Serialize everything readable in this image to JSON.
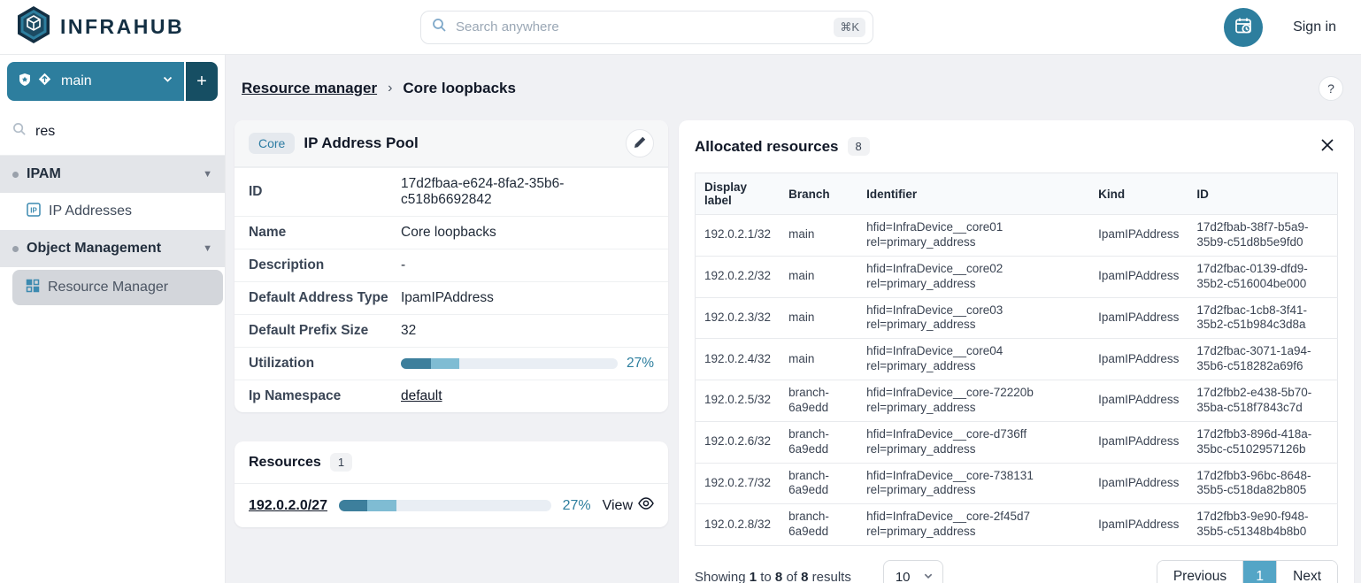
{
  "colors": {
    "brand_navy": "#132f43",
    "accent_teal": "#2d7e9e",
    "branch_add_bg": "#164e63",
    "active_page_bg": "#54a5c6",
    "progress_dark": "#3d7f9c",
    "progress_light": "#7fbcd3",
    "progress_track": "#e9eef4"
  },
  "icons": [
    "hexagon-logo-icon",
    "search-icon",
    "shield-icon",
    "branch-icon",
    "chevron-down-icon",
    "plus-icon",
    "calendar-clock-icon",
    "help-icon",
    "pencil-icon",
    "eye-icon",
    "close-icon",
    "ip-square-icon",
    "grid-icon",
    "bullet-dot"
  ],
  "header": {
    "brand": "INFRAHUB",
    "search": {
      "placeholder": "Search anywhere",
      "shortcut": "⌘K"
    },
    "sign_in": "Sign in"
  },
  "sidebar": {
    "branch": {
      "name": "main",
      "add_label": "+"
    },
    "filter_value": "res",
    "sections": [
      {
        "label": "IPAM"
      },
      {
        "label": "Object Management"
      }
    ],
    "items": [
      {
        "label": "IP Addresses"
      },
      {
        "label": "Resource Manager"
      }
    ]
  },
  "breadcrumb": {
    "parent": "Resource manager",
    "separator": "›",
    "current": "Core loopbacks",
    "help": "?"
  },
  "pool_card": {
    "badge": "Core",
    "title": "IP Address Pool",
    "labels": {
      "id": "ID",
      "name": "Name",
      "description": "Description",
      "default_address_type": "Default Address Type",
      "default_prefix_size": "Default Prefix Size",
      "utilization": "Utilization",
      "ip_namespace": "Ip Namespace"
    },
    "values": {
      "id": "17d2fbaa-e624-8fa2-35b6-c518b6692842",
      "name": "Core loopbacks",
      "description": "-",
      "default_address_type": "IpamIPAddress",
      "default_prefix_size": "32",
      "ip_namespace": "default"
    },
    "utilization": {
      "percent_label": "27%",
      "dark_pct": 14,
      "light_pct": 13
    }
  },
  "resources_card": {
    "title": "Resources",
    "count": "1",
    "item": {
      "prefix": "192.0.2.0/27",
      "percent_label": "27%",
      "dark_pct": 13.5,
      "light_pct": 13.5,
      "view_label": "View"
    }
  },
  "allocated": {
    "title": "Allocated resources",
    "count": "8",
    "columns": [
      "Display label",
      "Branch",
      "Identifier",
      "Kind",
      "ID"
    ],
    "rows": [
      {
        "display_label": "192.0.2.1/32",
        "branch": "main",
        "identifier_hfid": "hfid=InfraDevice__core01",
        "identifier_rel": "rel=primary_address",
        "kind": "IpamIPAddress",
        "id": "17d2fbab-38f7-b5a9-35b9-c51d8b5e9fd0"
      },
      {
        "display_label": "192.0.2.2/32",
        "branch": "main",
        "identifier_hfid": "hfid=InfraDevice__core02",
        "identifier_rel": "rel=primary_address",
        "kind": "IpamIPAddress",
        "id": "17d2fbac-0139-dfd9-35b2-c516004be000"
      },
      {
        "display_label": "192.0.2.3/32",
        "branch": "main",
        "identifier_hfid": "hfid=InfraDevice__core03",
        "identifier_rel": "rel=primary_address",
        "kind": "IpamIPAddress",
        "id": "17d2fbac-1cb8-3f41-35b2-c51b984c3d8a"
      },
      {
        "display_label": "192.0.2.4/32",
        "branch": "main",
        "identifier_hfid": "hfid=InfraDevice__core04",
        "identifier_rel": "rel=primary_address",
        "kind": "IpamIPAddress",
        "id": "17d2fbac-3071-1a94-35b6-c518282a69f6"
      },
      {
        "display_label": "192.0.2.5/32",
        "branch": "branch-6a9edd",
        "identifier_hfid": "hfid=InfraDevice__core-72220b",
        "identifier_rel": "rel=primary_address",
        "kind": "IpamIPAddress",
        "id": "17d2fbb2-e438-5b70-35ba-c518f7843c7d"
      },
      {
        "display_label": "192.0.2.6/32",
        "branch": "branch-6a9edd",
        "identifier_hfid": "hfid=InfraDevice__core-d736ff",
        "identifier_rel": "rel=primary_address",
        "kind": "IpamIPAddress",
        "id": "17d2fbb3-896d-418a-35bc-c5102957126b"
      },
      {
        "display_label": "192.0.2.7/32",
        "branch": "branch-6a9edd",
        "identifier_hfid": "hfid=InfraDevice__core-738131",
        "identifier_rel": "rel=primary_address",
        "kind": "IpamIPAddress",
        "id": "17d2fbb3-96bc-8648-35b5-c518da82b805"
      },
      {
        "display_label": "192.0.2.8/32",
        "branch": "branch-6a9edd",
        "identifier_hfid": "hfid=InfraDevice__core-2f45d7",
        "identifier_rel": "rel=primary_address",
        "kind": "IpamIPAddress",
        "id": "17d2fbb3-9e90-f948-35b5-c51348b4b8b0"
      }
    ],
    "footer": {
      "showing": {
        "prefix": "Showing",
        "from": "1",
        "mid": "to",
        "to": "8",
        "of": "of",
        "total": "8",
        "suffix": "results"
      },
      "page_size": "10",
      "previous": "Previous",
      "page": "1",
      "next": "Next"
    }
  }
}
